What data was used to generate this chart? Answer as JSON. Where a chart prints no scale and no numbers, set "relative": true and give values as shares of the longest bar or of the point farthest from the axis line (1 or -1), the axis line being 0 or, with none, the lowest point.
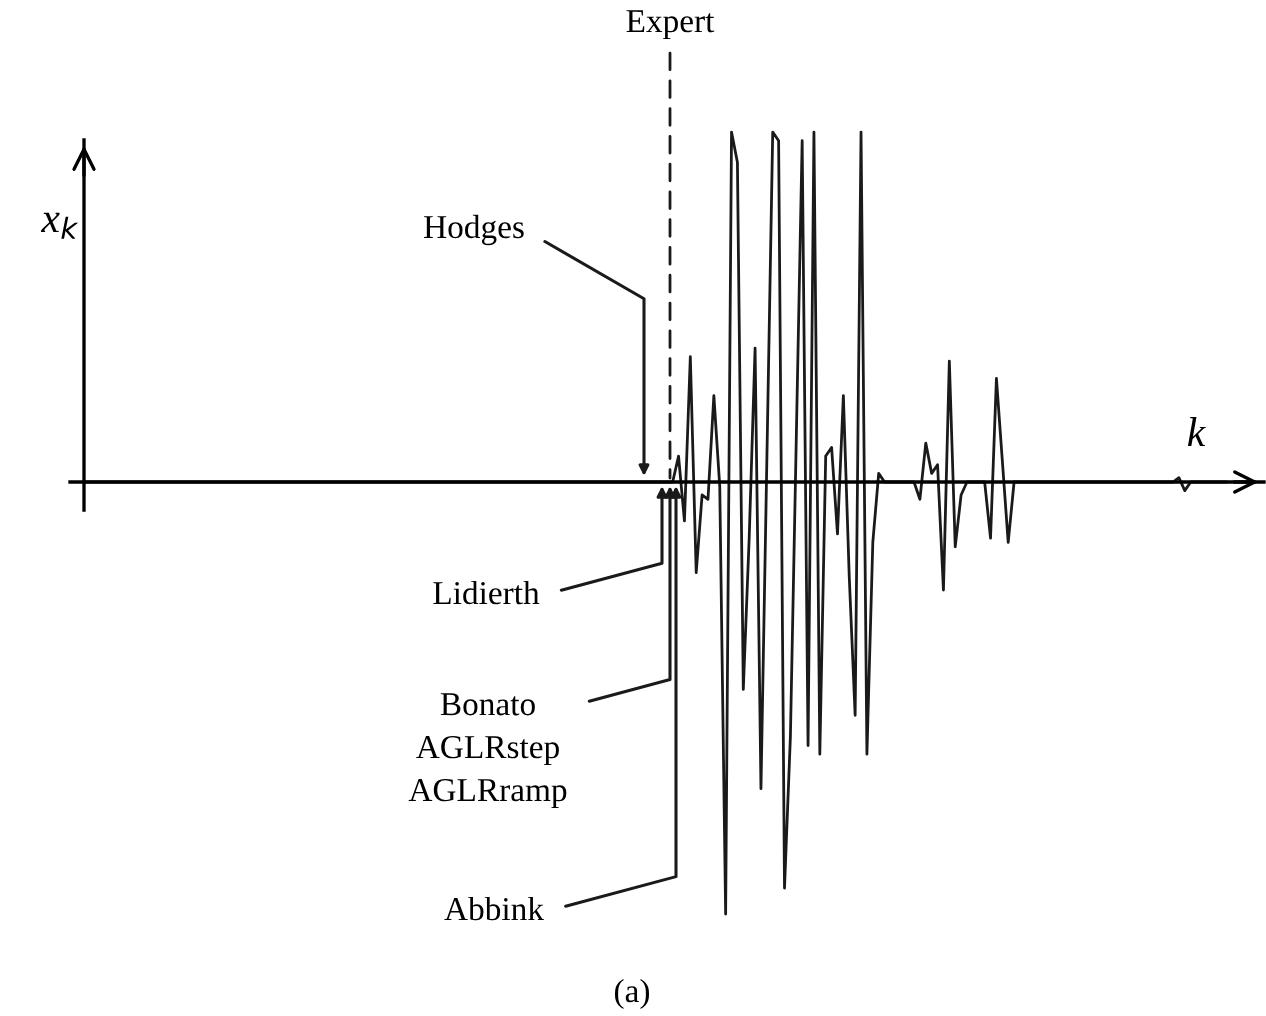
{
  "chart_data": {
    "type": "line",
    "relative": true,
    "xlabel": "k",
    "ylabel": "x$_{k}$",
    "categories": [
      null,
      null,
      null,
      null,
      null,
      null,
      null,
      null,
      null,
      null,
      null,
      null,
      null,
      null,
      null,
      null,
      null,
      null,
      null,
      null,
      null,
      null,
      null,
      null,
      null,
      null,
      null,
      null,
      null,
      null,
      null,
      null,
      null,
      null,
      null,
      null,
      null,
      null,
      null,
      null,
      null,
      null,
      null,
      null,
      null,
      null,
      null,
      null,
      null,
      null,
      null,
      null,
      null,
      null,
      null,
      null,
      null,
      null,
      null,
      null,
      null,
      null,
      null,
      null,
      null,
      null,
      null,
      null,
      null,
      null,
      null,
      null,
      null,
      null,
      null,
      null,
      null,
      null,
      null,
      null,
      null,
      null,
      null,
      null,
      null,
      null,
      null,
      null,
      null,
      null,
      null,
      null,
      null,
      null,
      null,
      null,
      null,
      null,
      null,
      null,
      null,
      null,
      null,
      null,
      null,
      null,
      null,
      null,
      null,
      null,
      null,
      null,
      null,
      null,
      null,
      null,
      null,
      null,
      null,
      null,
      null,
      null,
      null,
      null,
      null,
      null,
      null,
      null,
      null,
      null,
      null,
      null,
      null,
      null,
      null,
      null,
      null,
      null,
      null,
      null,
      null,
      null,
      null,
      null,
      null,
      null,
      null,
      null,
      null,
      null,
      null,
      null,
      null,
      null,
      null,
      null,
      null,
      null,
      null,
      null,
      null,
      null,
      null,
      null,
      null,
      null,
      null,
      null,
      null,
      null,
      null,
      null,
      null,
      null,
      null,
      null,
      null,
      null,
      null,
      null,
      null,
      null,
      null,
      null,
      null,
      null,
      null,
      null,
      null,
      null,
      null,
      null,
      null,
      null,
      null
    ],
    "values": [
      0,
      0,
      0,
      0,
      0,
      0,
      0,
      0,
      0,
      0,
      0,
      0,
      0,
      0,
      0,
      0,
      0,
      0,
      0,
      0,
      0,
      0,
      0,
      0,
      0,
      0,
      0,
      0,
      0,
      0,
      0,
      0,
      0,
      0,
      0,
      0,
      0,
      0,
      0,
      0,
      0,
      0,
      0,
      0,
      0,
      0,
      0,
      0,
      0,
      0,
      0,
      0,
      0,
      0,
      0,
      0,
      0,
      0,
      0,
      0,
      0,
      0,
      0,
      0,
      0,
      0,
      0,
      0,
      0,
      0,
      0,
      0,
      0,
      0,
      0,
      0,
      0,
      0,
      0,
      0,
      0,
      0,
      0,
      0,
      0,
      0,
      0,
      0,
      0,
      0,
      0,
      0,
      0,
      0,
      0,
      0,
      0,
      0,
      0,
      0,
      0,
      0.06,
      -0.09,
      0.29,
      -0.21,
      -0.03,
      -0.04,
      0.2,
      -0.01,
      -1,
      0.81,
      0.74,
      -0.48,
      -0.13,
      0.31,
      -0.71,
      0.05,
      0.81,
      0.79,
      -0.94,
      -0.59,
      0.1,
      0.79,
      -0.61,
      0.81,
      -0.63,
      0.06,
      0.08,
      -0.12,
      0.2,
      -0.22,
      -0.54,
      0.81,
      -0.63,
      -0.14,
      0.02,
      0,
      0,
      0,
      0,
      0,
      0,
      -0.04,
      0.09,
      0.02,
      0.04,
      -0.25,
      0.28,
      -0.15,
      -0.03,
      0,
      0,
      0,
      0,
      -0.13,
      0.24,
      0.05,
      -0.14,
      0,
      0,
      0,
      0,
      0,
      0,
      0,
      0,
      0,
      0,
      0,
      0,
      0,
      0,
      0,
      0,
      0,
      0,
      0,
      0,
      0,
      0,
      0,
      0,
      0,
      0,
      0,
      0,
      0.01,
      -0.02,
      0,
      0,
      0,
      0,
      0,
      0,
      0
    ],
    "color": "#1a1a1a",
    "annotations": [
      "Expert",
      "Hodges",
      "Lidierth",
      "Bonato\nAGLRstep\nAGLRramp",
      "Abbink",
      "(a)"
    ]
  }
}
